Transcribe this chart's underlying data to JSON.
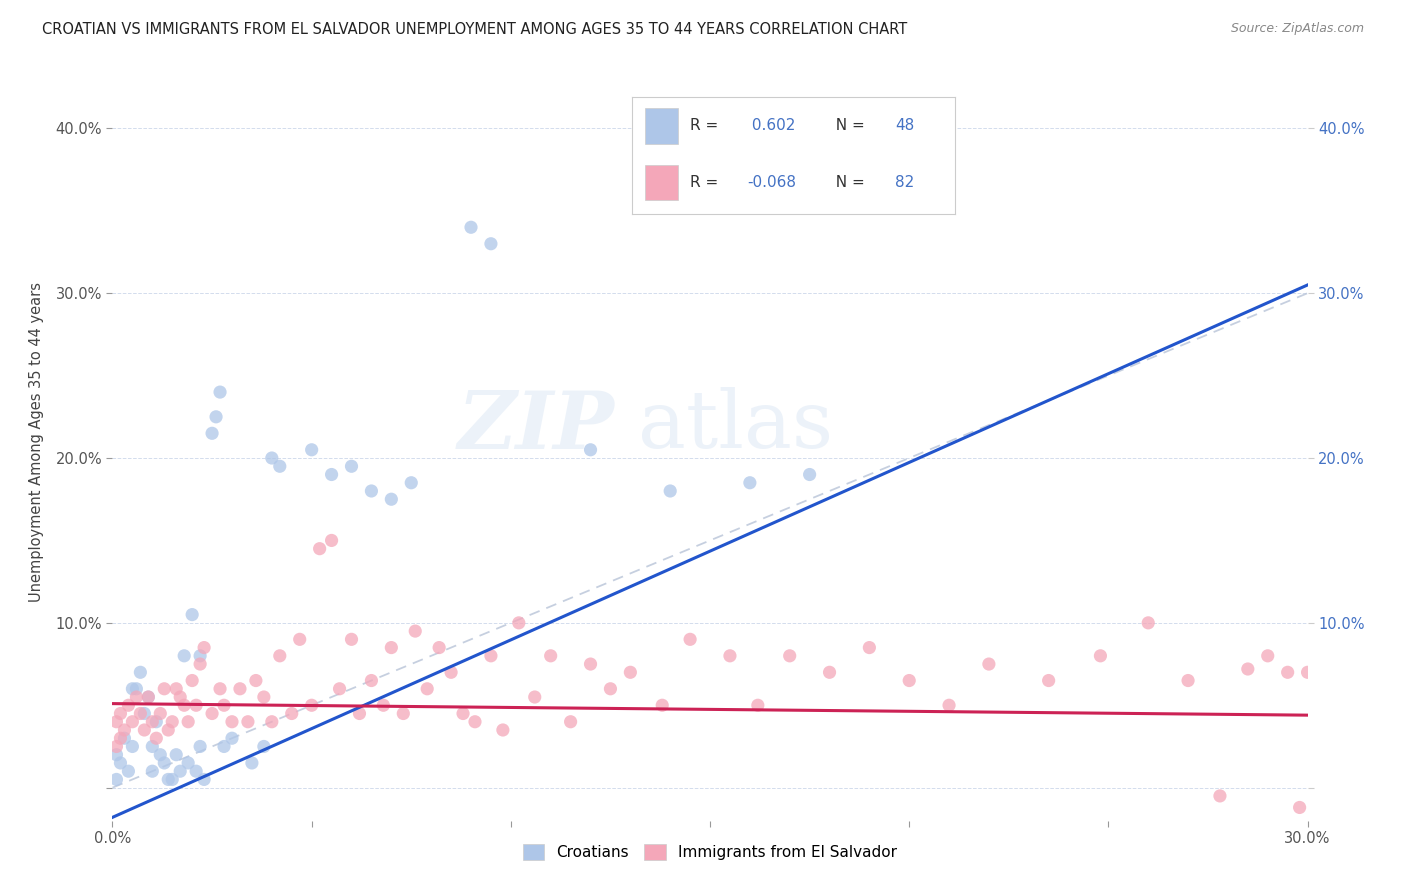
{
  "title": "CROATIAN VS IMMIGRANTS FROM EL SALVADOR UNEMPLOYMENT AMONG AGES 35 TO 44 YEARS CORRELATION CHART",
  "source": "Source: ZipAtlas.com",
  "ylabel": "Unemployment Among Ages 35 to 44 years",
  "xlim": [
    0.0,
    0.3
  ],
  "ylim": [
    -0.02,
    0.44
  ],
  "xtick_positions": [
    0.0,
    0.05,
    0.1,
    0.15,
    0.2,
    0.25,
    0.3
  ],
  "xtick_labels": [
    "0.0%",
    "",
    "",
    "",
    "",
    "",
    "30.0%"
  ],
  "ytick_positions": [
    0.0,
    0.1,
    0.2,
    0.3,
    0.4
  ],
  "ytick_labels_left": [
    "",
    "10.0%",
    "20.0%",
    "30.0%",
    "40.0%"
  ],
  "ytick_labels_right": [
    "",
    "10.0%",
    "20.0%",
    "30.0%",
    "40.0%"
  ],
  "croatian_color": "#aec6e8",
  "elsalvador_color": "#f4a7b9",
  "line_croatian_color": "#2255cc",
  "line_elsalvador_color": "#cc2255",
  "diagonal_color": "#b8c4d8",
  "R_croatian": 0.602,
  "N_croatian": 48,
  "R_elsalvador": -0.068,
  "N_elsalvador": 82,
  "watermark": "ZIPatlas",
  "cr_line_x0": 0.0,
  "cr_line_y0": -0.018,
  "cr_line_x1": 0.3,
  "cr_line_y1": 0.305,
  "es_line_x0": 0.0,
  "es_line_y0": 0.051,
  "es_line_x1": 0.3,
  "es_line_y1": 0.044,
  "croatian_x": [
    0.001,
    0.001,
    0.002,
    0.003,
    0.004,
    0.005,
    0.005,
    0.006,
    0.007,
    0.008,
    0.009,
    0.01,
    0.01,
    0.011,
    0.012,
    0.013,
    0.014,
    0.015,
    0.016,
    0.017,
    0.018,
    0.019,
    0.02,
    0.021,
    0.022,
    0.022,
    0.023,
    0.025,
    0.026,
    0.027,
    0.028,
    0.03,
    0.035,
    0.038,
    0.04,
    0.042,
    0.05,
    0.055,
    0.06,
    0.065,
    0.07,
    0.075,
    0.09,
    0.095,
    0.12,
    0.14,
    0.16,
    0.175
  ],
  "croatian_y": [
    0.005,
    0.02,
    0.015,
    0.03,
    0.01,
    0.025,
    0.06,
    0.06,
    0.07,
    0.045,
    0.055,
    0.01,
    0.025,
    0.04,
    0.02,
    0.015,
    0.005,
    0.005,
    0.02,
    0.01,
    0.08,
    0.015,
    0.105,
    0.01,
    0.025,
    0.08,
    0.005,
    0.215,
    0.225,
    0.24,
    0.025,
    0.03,
    0.015,
    0.025,
    0.2,
    0.195,
    0.205,
    0.19,
    0.195,
    0.18,
    0.175,
    0.185,
    0.34,
    0.33,
    0.205,
    0.18,
    0.185,
    0.19
  ],
  "elsalvador_x": [
    0.001,
    0.001,
    0.002,
    0.002,
    0.003,
    0.004,
    0.005,
    0.006,
    0.007,
    0.008,
    0.009,
    0.01,
    0.011,
    0.012,
    0.013,
    0.014,
    0.015,
    0.016,
    0.017,
    0.018,
    0.019,
    0.02,
    0.021,
    0.022,
    0.023,
    0.025,
    0.027,
    0.028,
    0.03,
    0.032,
    0.034,
    0.036,
    0.038,
    0.04,
    0.042,
    0.045,
    0.047,
    0.05,
    0.052,
    0.055,
    0.057,
    0.06,
    0.062,
    0.065,
    0.068,
    0.07,
    0.073,
    0.076,
    0.079,
    0.082,
    0.085,
    0.088,
    0.091,
    0.095,
    0.098,
    0.102,
    0.106,
    0.11,
    0.115,
    0.12,
    0.125,
    0.13,
    0.138,
    0.145,
    0.155,
    0.162,
    0.17,
    0.18,
    0.19,
    0.2,
    0.21,
    0.22,
    0.235,
    0.248,
    0.26,
    0.27,
    0.278,
    0.285,
    0.29,
    0.295,
    0.298,
    0.3
  ],
  "elsalvador_y": [
    0.025,
    0.04,
    0.03,
    0.045,
    0.035,
    0.05,
    0.04,
    0.055,
    0.045,
    0.035,
    0.055,
    0.04,
    0.03,
    0.045,
    0.06,
    0.035,
    0.04,
    0.06,
    0.055,
    0.05,
    0.04,
    0.065,
    0.05,
    0.075,
    0.085,
    0.045,
    0.06,
    0.05,
    0.04,
    0.06,
    0.04,
    0.065,
    0.055,
    0.04,
    0.08,
    0.045,
    0.09,
    0.05,
    0.145,
    0.15,
    0.06,
    0.09,
    0.045,
    0.065,
    0.05,
    0.085,
    0.045,
    0.095,
    0.06,
    0.085,
    0.07,
    0.045,
    0.04,
    0.08,
    0.035,
    0.1,
    0.055,
    0.08,
    0.04,
    0.075,
    0.06,
    0.07,
    0.05,
    0.09,
    0.08,
    0.05,
    0.08,
    0.07,
    0.085,
    0.065,
    0.05,
    0.075,
    0.065,
    0.08,
    0.1,
    0.065,
    -0.005,
    0.072,
    0.08,
    0.07,
    -0.012,
    0.07
  ]
}
